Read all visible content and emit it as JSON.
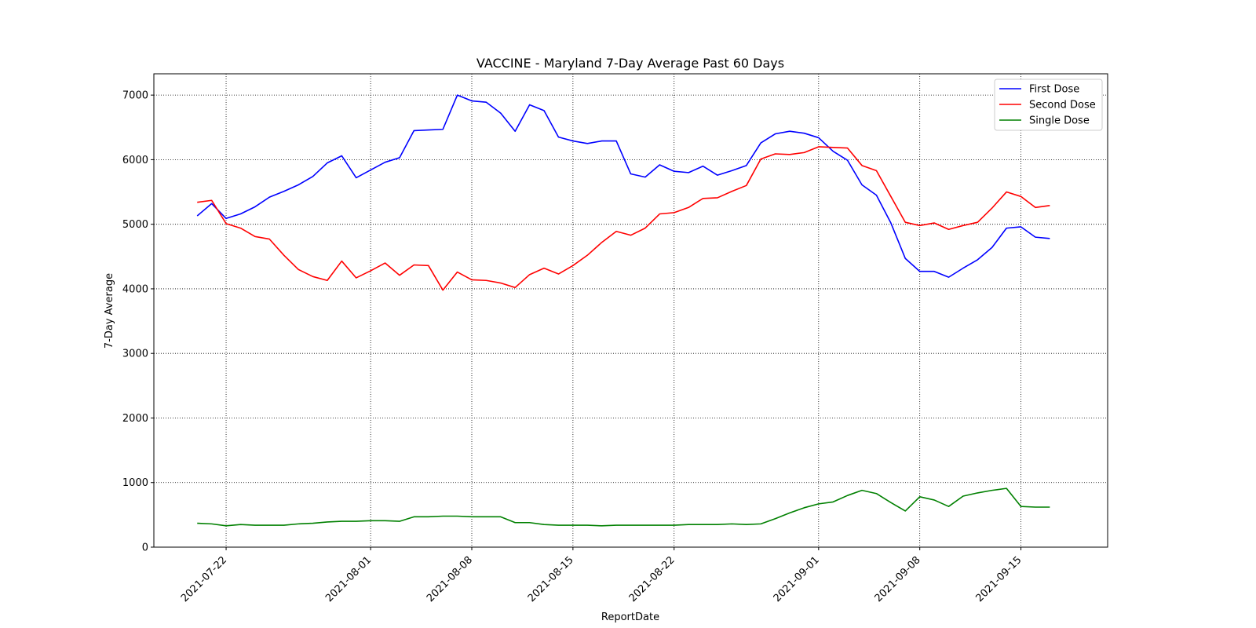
{
  "chart_data": {
    "type": "line",
    "title": "VACCINE - Maryland 7-Day Average Past 60 Days",
    "xlabel": "ReportDate",
    "ylabel": "7-Day Average",
    "x_start": "2021-07-20",
    "x_range": [
      "2021-07-17",
      "2021-09-21"
    ],
    "ylim": [
      0,
      7330
    ],
    "x_ticks": [
      "2021-07-22",
      "2021-08-01",
      "2021-08-08",
      "2021-08-15",
      "2021-08-22",
      "2021-09-01",
      "2021-09-08",
      "2021-09-15"
    ],
    "y_ticks": [
      0,
      1000,
      2000,
      3000,
      4000,
      5000,
      6000,
      7000
    ],
    "grid": true,
    "legend_position": "top-right",
    "series": [
      {
        "name": "First Dose",
        "color": "#0000ff",
        "values": [
          5130,
          5320,
          5090,
          5160,
          5270,
          5420,
          5510,
          5610,
          5740,
          5950,
          6060,
          5720,
          5840,
          5960,
          6030,
          6450,
          6460,
          6470,
          7000,
          6910,
          6890,
          6720,
          6440,
          6850,
          6760,
          6350,
          6290,
          6250,
          6290,
          6290,
          5780,
          5730,
          5920,
          5820,
          5800,
          5900,
          5760,
          5830,
          5910,
          6260,
          6400,
          6440,
          6410,
          6340,
          6130,
          5990,
          5610,
          5450,
          5020,
          4470,
          4270,
          4270,
          4180,
          4320,
          4450,
          4640,
          4940,
          4960,
          4800,
          4780
        ]
      },
      {
        "name": "Second Dose",
        "color": "#ff0000",
        "values": [
          5340,
          5370,
          5010,
          4940,
          4810,
          4770,
          4520,
          4300,
          4190,
          4130,
          4430,
          4170,
          4280,
          4400,
          4210,
          4370,
          4360,
          3980,
          4260,
          4140,
          4130,
          4090,
          4020,
          4220,
          4320,
          4230,
          4360,
          4520,
          4720,
          4890,
          4830,
          4940,
          5160,
          5180,
          5260,
          5400,
          5410,
          5510,
          5600,
          6010,
          6090,
          6080,
          6110,
          6200,
          6190,
          6180,
          5910,
          5830,
          5430,
          5030,
          4980,
          5020,
          4920,
          4980,
          5030,
          5250,
          5500,
          5430,
          5260,
          5290
        ]
      },
      {
        "name": "Single Dose",
        "color": "#008000",
        "values": [
          370,
          360,
          330,
          350,
          340,
          340,
          340,
          360,
          370,
          390,
          400,
          400,
          410,
          410,
          400,
          470,
          470,
          480,
          480,
          470,
          470,
          470,
          380,
          380,
          350,
          340,
          340,
          340,
          330,
          340,
          340,
          340,
          340,
          340,
          350,
          350,
          350,
          360,
          350,
          360,
          440,
          530,
          610,
          670,
          700,
          800,
          880,
          830,
          690,
          560,
          780,
          730,
          630,
          790,
          840,
          880,
          910,
          630,
          620,
          620
        ]
      }
    ]
  }
}
